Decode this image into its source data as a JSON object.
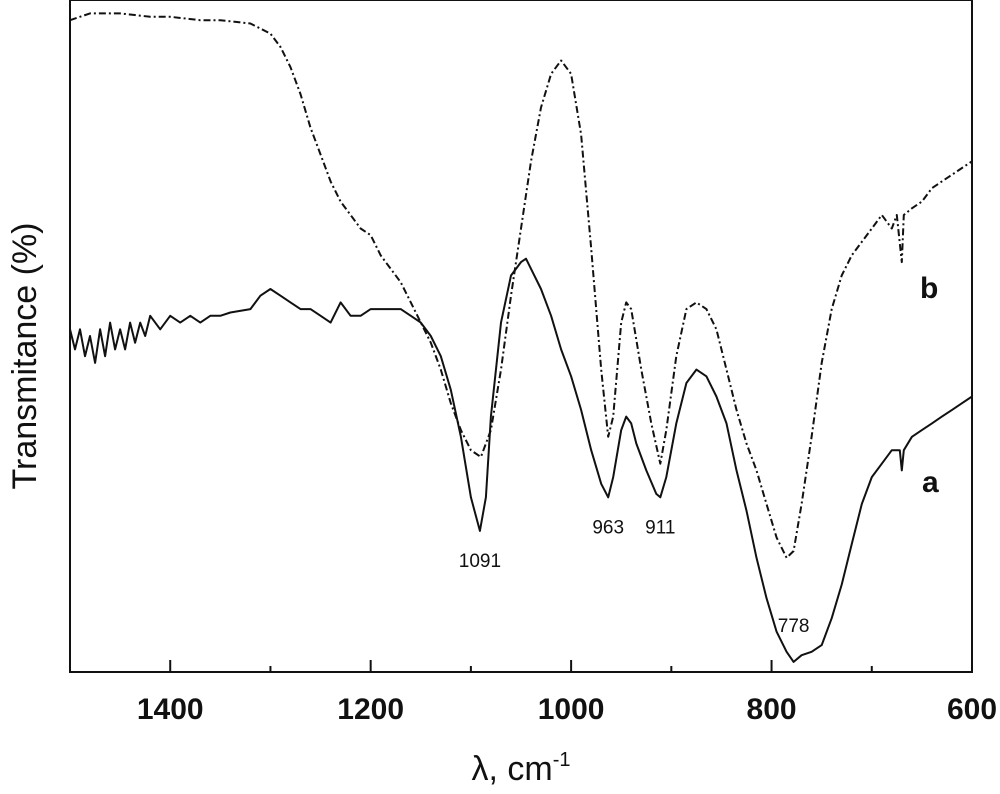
{
  "chart_data": {
    "type": "line",
    "xlabel": "λ, cm",
    "xlabel_superscript": "-1",
    "ylabel": "Transmitance (%)",
    "xlim": [
      1500,
      600
    ],
    "ylim": [
      0,
      100
    ],
    "x_reversed": true,
    "grid": false,
    "legend": "none",
    "x_ticks": [
      1400,
      1200,
      1000,
      800,
      600
    ],
    "x_tick_labels": [
      "1400",
      "1200",
      "1000",
      "800",
      "600"
    ],
    "series": [
      {
        "name": "a",
        "line_style": "solid",
        "color": "#111111",
        "points": [
          [
            1500,
            51
          ],
          [
            1495,
            48
          ],
          [
            1490,
            51
          ],
          [
            1485,
            47
          ],
          [
            1480,
            50
          ],
          [
            1475,
            46
          ],
          [
            1470,
            51
          ],
          [
            1465,
            47
          ],
          [
            1460,
            52
          ],
          [
            1455,
            48
          ],
          [
            1450,
            51
          ],
          [
            1445,
            48
          ],
          [
            1440,
            52
          ],
          [
            1435,
            49
          ],
          [
            1430,
            52
          ],
          [
            1425,
            50
          ],
          [
            1420,
            53
          ],
          [
            1410,
            51
          ],
          [
            1400,
            53
          ],
          [
            1390,
            52
          ],
          [
            1380,
            53
          ],
          [
            1370,
            52
          ],
          [
            1360,
            53
          ],
          [
            1350,
            53
          ],
          [
            1340,
            53.5
          ],
          [
            1320,
            54
          ],
          [
            1310,
            56
          ],
          [
            1300,
            57
          ],
          [
            1290,
            56
          ],
          [
            1280,
            55
          ],
          [
            1270,
            54
          ],
          [
            1260,
            54
          ],
          [
            1250,
            53
          ],
          [
            1240,
            52
          ],
          [
            1230,
            55
          ],
          [
            1220,
            53
          ],
          [
            1210,
            53
          ],
          [
            1200,
            54
          ],
          [
            1180,
            54
          ],
          [
            1170,
            54
          ],
          [
            1160,
            53
          ],
          [
            1150,
            52
          ],
          [
            1140,
            50
          ],
          [
            1130,
            47
          ],
          [
            1120,
            42
          ],
          [
            1110,
            35
          ],
          [
            1100,
            26
          ],
          [
            1091,
            21
          ],
          [
            1085,
            26
          ],
          [
            1080,
            38
          ],
          [
            1070,
            52
          ],
          [
            1060,
            59
          ],
          [
            1050,
            61
          ],
          [
            1045,
            61.5
          ],
          [
            1040,
            60
          ],
          [
            1030,
            57
          ],
          [
            1020,
            53
          ],
          [
            1010,
            48
          ],
          [
            1000,
            44
          ],
          [
            990,
            39
          ],
          [
            980,
            33
          ],
          [
            970,
            28
          ],
          [
            963,
            26
          ],
          [
            958,
            29
          ],
          [
            950,
            36
          ],
          [
            945,
            38
          ],
          [
            940,
            37
          ],
          [
            935,
            34
          ],
          [
            925,
            30
          ],
          [
            915,
            26.5
          ],
          [
            911,
            26
          ],
          [
            905,
            29
          ],
          [
            895,
            37
          ],
          [
            885,
            43
          ],
          [
            875,
            45
          ],
          [
            865,
            44
          ],
          [
            855,
            41
          ],
          [
            845,
            37
          ],
          [
            835,
            30
          ],
          [
            825,
            24
          ],
          [
            815,
            17
          ],
          [
            805,
            11
          ],
          [
            795,
            6
          ],
          [
            785,
            3
          ],
          [
            778,
            1.5
          ],
          [
            770,
            2.5
          ],
          [
            760,
            3
          ],
          [
            750,
            4
          ],
          [
            740,
            8
          ],
          [
            730,
            13
          ],
          [
            720,
            19
          ],
          [
            710,
            25
          ],
          [
            700,
            29
          ],
          [
            690,
            31
          ],
          [
            680,
            33
          ],
          [
            672,
            33
          ],
          [
            670,
            30
          ],
          [
            668,
            33
          ],
          [
            660,
            35
          ],
          [
            650,
            36
          ],
          [
            640,
            37
          ],
          [
            630,
            38
          ],
          [
            620,
            39
          ],
          [
            610,
            40
          ],
          [
            600,
            41
          ]
        ]
      },
      {
        "name": "b",
        "line_style": "dash-dot",
        "color": "#111111",
        "points": [
          [
            1500,
            97
          ],
          [
            1480,
            98
          ],
          [
            1450,
            98
          ],
          [
            1420,
            97.5
          ],
          [
            1400,
            97.5
          ],
          [
            1370,
            97
          ],
          [
            1350,
            97
          ],
          [
            1320,
            96.5
          ],
          [
            1300,
            95
          ],
          [
            1290,
            93
          ],
          [
            1280,
            90
          ],
          [
            1270,
            86
          ],
          [
            1260,
            81
          ],
          [
            1250,
            77
          ],
          [
            1240,
            73
          ],
          [
            1230,
            70
          ],
          [
            1220,
            68
          ],
          [
            1210,
            66
          ],
          [
            1200,
            65
          ],
          [
            1190,
            62
          ],
          [
            1180,
            60
          ],
          [
            1170,
            58
          ],
          [
            1160,
            55
          ],
          [
            1150,
            52
          ],
          [
            1140,
            49
          ],
          [
            1130,
            45
          ],
          [
            1120,
            40
          ],
          [
            1110,
            36
          ],
          [
            1100,
            33
          ],
          [
            1090,
            32
          ],
          [
            1080,
            36
          ],
          [
            1070,
            45
          ],
          [
            1060,
            56
          ],
          [
            1050,
            66
          ],
          [
            1040,
            76
          ],
          [
            1030,
            84
          ],
          [
            1020,
            89
          ],
          [
            1010,
            91
          ],
          [
            1000,
            89
          ],
          [
            990,
            80
          ],
          [
            980,
            63
          ],
          [
            970,
            45
          ],
          [
            963,
            35
          ],
          [
            958,
            38
          ],
          [
            950,
            52
          ],
          [
            945,
            55
          ],
          [
            940,
            54
          ],
          [
            930,
            45
          ],
          [
            920,
            37
          ],
          [
            911,
            31
          ],
          [
            905,
            36
          ],
          [
            895,
            47
          ],
          [
            885,
            54
          ],
          [
            875,
            55
          ],
          [
            865,
            54
          ],
          [
            855,
            51
          ],
          [
            845,
            45
          ],
          [
            835,
            39
          ],
          [
            825,
            34
          ],
          [
            815,
            30
          ],
          [
            805,
            25
          ],
          [
            795,
            20
          ],
          [
            785,
            17
          ],
          [
            778,
            18
          ],
          [
            770,
            25
          ],
          [
            760,
            35
          ],
          [
            750,
            46
          ],
          [
            740,
            54
          ],
          [
            730,
            59
          ],
          [
            720,
            62
          ],
          [
            710,
            64
          ],
          [
            700,
            66
          ],
          [
            690,
            68
          ],
          [
            680,
            66
          ],
          [
            675,
            68
          ],
          [
            670,
            61
          ],
          [
            668,
            68
          ],
          [
            660,
            69
          ],
          [
            650,
            70
          ],
          [
            640,
            72
          ],
          [
            630,
            73
          ],
          [
            620,
            74
          ],
          [
            610,
            75
          ],
          [
            600,
            76
          ]
        ]
      }
    ],
    "annotations": [
      {
        "text": "1091",
        "x": 1091
      },
      {
        "text": "963",
        "x": 963
      },
      {
        "text": "911",
        "x": 911
      },
      {
        "text": "778",
        "x": 778
      }
    ]
  }
}
